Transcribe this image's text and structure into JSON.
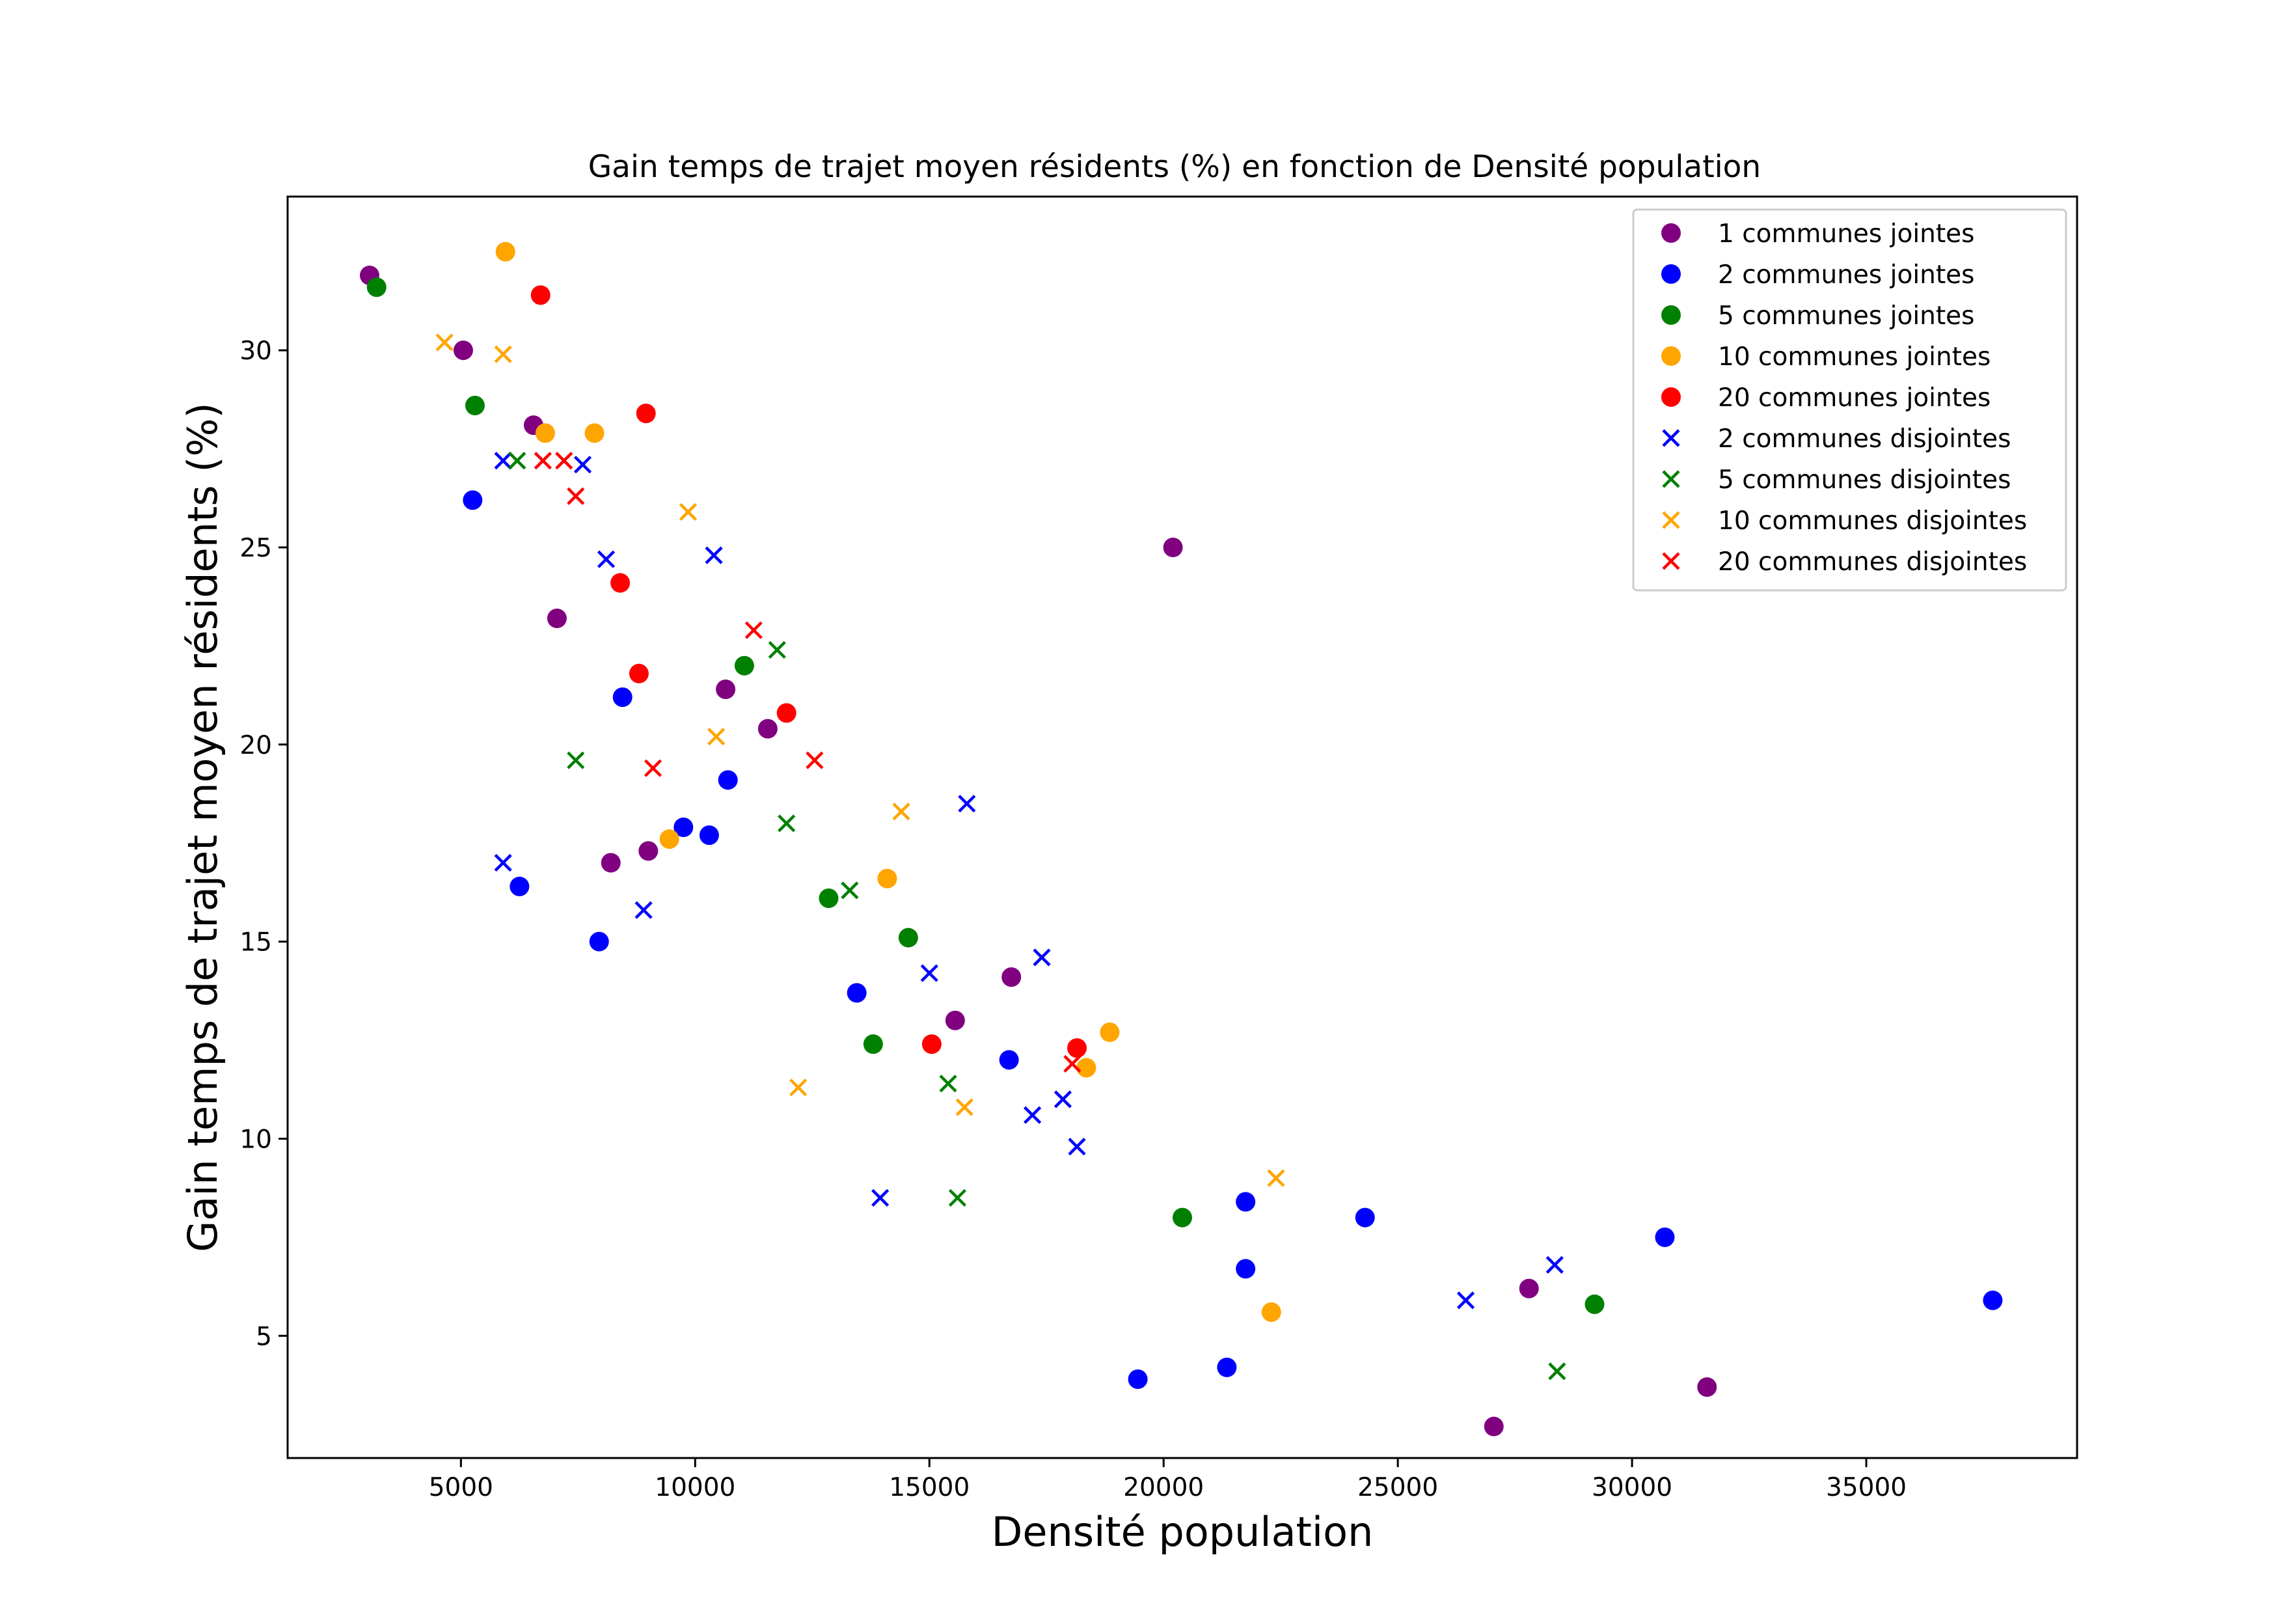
{
  "chart_data": {
    "type": "scatter",
    "title": "Gain temps de trajet moyen résidents (%) en fonction de Densité population",
    "xlabel": "Densité population",
    "ylabel": "Gain temps de trajet moyen résidents (%)",
    "xlim": [
      1300,
      39500
    ],
    "ylim": [
      1.9,
      33.9
    ],
    "xticks": [
      5000,
      10000,
      15000,
      20000,
      25000,
      30000,
      35000
    ],
    "yticks": [
      5,
      10,
      15,
      20,
      25,
      30
    ],
    "grid": false,
    "legend_position": "top-right",
    "series": [
      {
        "name": "1 communes jointes",
        "marker": "circle",
        "color": "#800080",
        "points": [
          [
            3050,
            31.9
          ],
          [
            5050,
            30.0
          ],
          [
            6550,
            28.1
          ],
          [
            7050,
            23.2
          ],
          [
            8200,
            17.0
          ],
          [
            9000,
            17.3
          ],
          [
            10650,
            21.4
          ],
          [
            11550,
            20.4
          ],
          [
            15550,
            13.0
          ],
          [
            16750,
            14.1
          ],
          [
            20200,
            25.0
          ],
          [
            27050,
            2.7
          ],
          [
            27800,
            6.2
          ],
          [
            31600,
            3.7
          ]
        ]
      },
      {
        "name": "2 communes jointes",
        "marker": "circle",
        "color": "#0000ff",
        "points": [
          [
            5250,
            26.2
          ],
          [
            6250,
            16.4
          ],
          [
            7950,
            15.0
          ],
          [
            8450,
            21.2
          ],
          [
            9750,
            17.9
          ],
          [
            10300,
            17.7
          ],
          [
            10700,
            19.1
          ],
          [
            13450,
            13.7
          ],
          [
            16700,
            12.0
          ],
          [
            19450,
            3.9
          ],
          [
            21350,
            4.2
          ],
          [
            21750,
            6.7
          ],
          [
            21750,
            8.4
          ],
          [
            24300,
            8.0
          ],
          [
            30700,
            7.5
          ],
          [
            37700,
            5.9
          ]
        ]
      },
      {
        "name": "5 communes jointes",
        "marker": "circle",
        "color": "#008000",
        "points": [
          [
            3200,
            31.6
          ],
          [
            5300,
            28.6
          ],
          [
            11050,
            22.0
          ],
          [
            12850,
            16.1
          ],
          [
            13800,
            12.4
          ],
          [
            14550,
            15.1
          ],
          [
            20400,
            8.0
          ],
          [
            29200,
            5.8
          ]
        ]
      },
      {
        "name": "10 communes jointes",
        "marker": "circle",
        "color": "#ffa500",
        "points": [
          [
            5950,
            32.5
          ],
          [
            6800,
            27.9
          ],
          [
            7850,
            27.9
          ],
          [
            9450,
            17.6
          ],
          [
            14100,
            16.6
          ],
          [
            18350,
            11.8
          ],
          [
            18850,
            12.7
          ],
          [
            22300,
            5.6
          ]
        ]
      },
      {
        "name": "20 communes jointes",
        "marker": "circle",
        "color": "#ff0000",
        "points": [
          [
            6700,
            31.4
          ],
          [
            8400,
            24.1
          ],
          [
            8800,
            21.8
          ],
          [
            8950,
            28.4
          ],
          [
            11950,
            20.8
          ],
          [
            15050,
            12.4
          ],
          [
            18150,
            12.3
          ]
        ]
      },
      {
        "name": "2 communes disjointes",
        "marker": "x",
        "color": "#0000ff",
        "points": [
          [
            5900,
            27.2
          ],
          [
            5900,
            17.0
          ],
          [
            7600,
            27.1
          ],
          [
            8100,
            24.7
          ],
          [
            8900,
            15.8
          ],
          [
            10400,
            24.8
          ],
          [
            13950,
            8.5
          ],
          [
            15000,
            14.2
          ],
          [
            15800,
            18.5
          ],
          [
            17200,
            10.6
          ],
          [
            17400,
            14.6
          ],
          [
            17850,
            11.0
          ],
          [
            18150,
            9.8
          ],
          [
            26450,
            5.9
          ],
          [
            28350,
            6.8
          ]
        ]
      },
      {
        "name": "5 communes disjointes",
        "marker": "x",
        "color": "#008000",
        "points": [
          [
            6200,
            27.2
          ],
          [
            7450,
            19.6
          ],
          [
            11750,
            22.4
          ],
          [
            11950,
            18.0
          ],
          [
            13300,
            16.3
          ],
          [
            15400,
            11.4
          ],
          [
            15600,
            8.5
          ],
          [
            28400,
            4.1
          ]
        ]
      },
      {
        "name": "10 communes disjointes",
        "marker": "x",
        "color": "#ffa500",
        "points": [
          [
            4650,
            30.2
          ],
          [
            5900,
            29.9
          ],
          [
            9850,
            25.9
          ],
          [
            10450,
            20.2
          ],
          [
            12200,
            11.3
          ],
          [
            14400,
            18.3
          ],
          [
            15750,
            10.8
          ],
          [
            22400,
            9.0
          ]
        ]
      },
      {
        "name": "20 communes disjointes",
        "marker": "x",
        "color": "#ff0000",
        "points": [
          [
            6750,
            27.2
          ],
          [
            7200,
            27.2
          ],
          [
            7450,
            26.3
          ],
          [
            9100,
            19.4
          ],
          [
            11250,
            22.9
          ],
          [
            12550,
            19.6
          ],
          [
            18050,
            11.9
          ]
        ]
      }
    ]
  }
}
